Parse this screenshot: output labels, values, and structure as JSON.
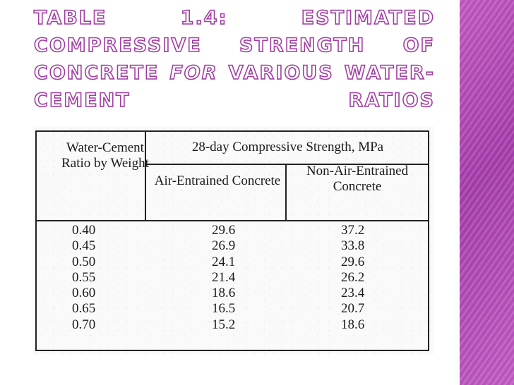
{
  "slide": {
    "title_prefix": "Table 1.4: Estimated compressive strength of concrete",
    "title_em": "for",
    "title_suffix": "various water-cement ratios"
  },
  "table": {
    "stub_header": "Water-Cement Ratio by Weight",
    "span_header": "28-day Compressive Strength, MPa",
    "column_headers": [
      "Air-Entrained Concrete",
      "Non-Air-Entrained Concrete"
    ],
    "rows": [
      {
        "ratio": "0.40",
        "air": "29.6",
        "non_air": "37.2"
      },
      {
        "ratio": "0.45",
        "air": "26.9",
        "non_air": "33.8"
      },
      {
        "ratio": "0.50",
        "air": "24.1",
        "non_air": "29.6"
      },
      {
        "ratio": "0.55",
        "air": "21.4",
        "non_air": "26.2"
      },
      {
        "ratio": "0.60",
        "air": "18.6",
        "non_air": "23.4"
      },
      {
        "ratio": "0.65",
        "air": "16.5",
        "non_air": "20.7"
      },
      {
        "ratio": "0.70",
        "air": "15.2",
        "non_air": "18.6"
      }
    ]
  },
  "colors": {
    "accent": "#a23ea4",
    "side_bar": "#b84ab9"
  }
}
